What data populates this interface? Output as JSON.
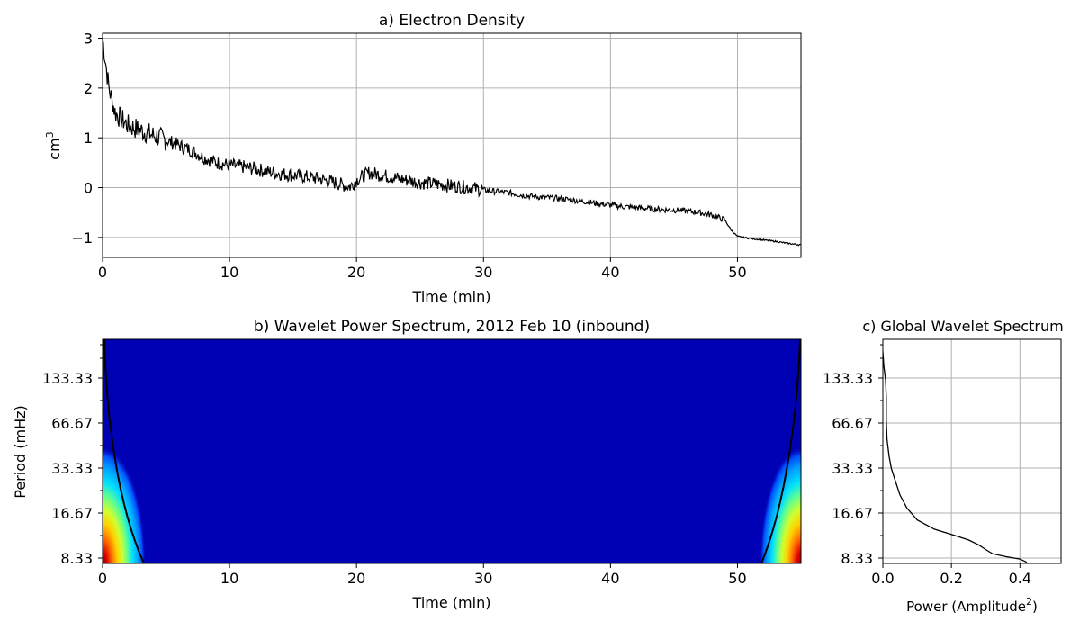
{
  "chart_data": [
    {
      "type": "line",
      "title": "a) Electron Density",
      "xlabel": "Time (min)",
      "ylabel": "cm",
      "ylabel_sup": "3",
      "xlim": [
        0,
        55
      ],
      "ylim": [
        -1.4,
        3.1
      ],
      "grid": true,
      "x_ticks": [
        0,
        10,
        20,
        30,
        40,
        50
      ],
      "y_ticks": [
        -1,
        0,
        1,
        2,
        3
      ],
      "y_tick_labels": [
        "−1",
        "0",
        "1",
        "2",
        "3"
      ],
      "series": [
        {
          "color": "#000000",
          "x": [
            0,
            0.5,
            1,
            2,
            3,
            4,
            5,
            6,
            7,
            8,
            9,
            10,
            11,
            12,
            13,
            14,
            15,
            16,
            17,
            18,
            19,
            19.5,
            20,
            21,
            22,
            23,
            24,
            25,
            26,
            27,
            28,
            29,
            30,
            31,
            32,
            33,
            34,
            35,
            36,
            37,
            38,
            39,
            40,
            41,
            42,
            43,
            44,
            45,
            46,
            47,
            48,
            49,
            49.5,
            50,
            51,
            52,
            53,
            54,
            55
          ],
          "y": [
            3.0,
            2.0,
            1.5,
            1.25,
            1.15,
            1.05,
            0.95,
            0.85,
            0.75,
            0.6,
            0.5,
            0.45,
            0.42,
            0.38,
            0.32,
            0.28,
            0.25,
            0.22,
            0.18,
            0.12,
            0.05,
            0.02,
            0.15,
            0.3,
            0.25,
            0.2,
            0.15,
            0.1,
            0.08,
            0.05,
            0.02,
            0.0,
            -0.05,
            -0.08,
            -0.1,
            -0.15,
            -0.18,
            -0.2,
            -0.22,
            -0.25,
            -0.28,
            -0.32,
            -0.35,
            -0.38,
            -0.4,
            -0.42,
            -0.44,
            -0.45,
            -0.47,
            -0.5,
            -0.55,
            -0.65,
            -0.85,
            -0.98,
            -1.02,
            -1.05,
            -1.08,
            -1.12,
            -1.15
          ]
        }
      ]
    },
    {
      "type": "heatmap",
      "title": "b) Wavelet Power Spectrum, 2012 Feb 10 (inbound)",
      "xlabel": "Time (min)",
      "ylabel": "Period (mHz)",
      "xlim": [
        0,
        55
      ],
      "x_ticks": [
        0,
        10,
        20,
        30,
        40,
        50
      ],
      "y_tick_labels": [
        "133.33",
        "66.67",
        "33.33",
        "16.67",
        "8.33"
      ],
      "log_y": true,
      "background_color": "#0000b4",
      "colormap": [
        "#0000b4",
        "#0010e8",
        "#0050ff",
        "#00a0ff",
        "#00e0ff",
        "#60ff90",
        "#d0ff30",
        "#ffd000",
        "#ff7000",
        "#e00000",
        "#900000"
      ],
      "cone_of_influence": true
    },
    {
      "type": "line",
      "title": "c) Global Wavelet Spectrum",
      "xlabel": "Power (Amplitude",
      "xlabel_sup": "2",
      "xlabel_end": ")",
      "xlim": [
        0,
        0.52
      ],
      "x_ticks": [
        0.0,
        0.2,
        0.4
      ],
      "x_tick_labels": [
        "0.0",
        "0.2",
        "0.4"
      ],
      "y_tick_labels": [
        "133.33",
        "66.67",
        "33.33",
        "16.67",
        "8.33"
      ],
      "log_y": true,
      "grid": true,
      "series": [
        {
          "color": "#000000",
          "x": [
            0.0,
            0.003,
            0.008,
            0.01,
            0.01,
            0.012,
            0.018,
            0.025,
            0.035,
            0.05,
            0.07,
            0.1,
            0.15,
            0.2,
            0.25,
            0.28,
            0.3,
            0.32,
            0.36,
            0.4,
            0.42
          ],
          "period": [
            200,
            160,
            130,
            100,
            70,
            52,
            40,
            33,
            28,
            22,
            18,
            15,
            13,
            12,
            11,
            10.2,
            9.5,
            8.9,
            8.5,
            8.2,
            7.8
          ]
        }
      ]
    }
  ]
}
